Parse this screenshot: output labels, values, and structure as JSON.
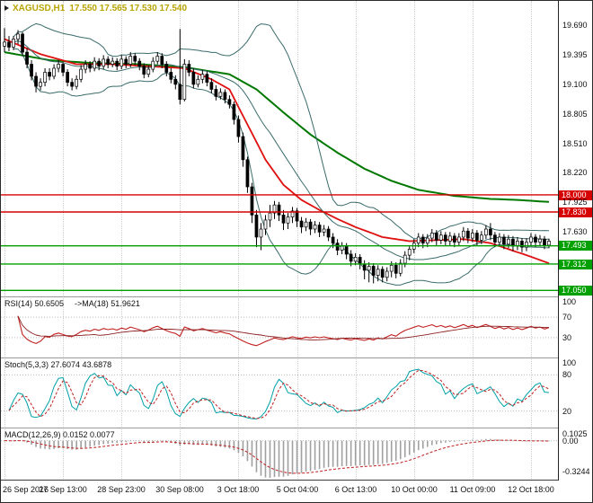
{
  "window": {
    "title_symbol": "XAGUSD,H1",
    "title_ohlc": "17.550 17.565 17.530 17.540"
  },
  "colors": {
    "bull": "#FFFFFF",
    "bear": "#000000",
    "wick": "#000000",
    "title": "#B9A400",
    "grid": "#CFCFCF"
  },
  "chart_data": {
    "type": "candlestick",
    "symbol": "XAGUSD",
    "timeframe": "H1",
    "open": "17.550",
    "high": "17.565",
    "low": "17.530",
    "close": "17.540",
    "price_range": {
      "max": 19.93,
      "min": 16.99
    },
    "y_axis_ticks": [
      "19.690",
      "19.395",
      "19.100",
      "18.805",
      "18.510",
      "18.220",
      "17.925",
      "17.630"
    ],
    "levels": [
      {
        "value": 18.0,
        "label": "18.000",
        "color": "#d60000"
      },
      {
        "value": 17.83,
        "label": "17.830",
        "color": "#d60000"
      },
      {
        "value": 17.493,
        "label": "17.493",
        "color": "#00a000"
      },
      {
        "value": 17.312,
        "label": "17.312",
        "color": "#00a000"
      },
      {
        "value": 17.05,
        "label": "17.050",
        "color": "#00a000"
      }
    ],
    "x_labels": [
      {
        "label": "26 Sep 2016",
        "i": 0
      },
      {
        "label": "27 Sep 13:00",
        "i": 13
      },
      {
        "label": "28 Sep 23:00",
        "i": 26
      },
      {
        "label": "30 Sep 08:00",
        "i": 39
      },
      {
        "label": "3 Oct 18:00",
        "i": 52
      },
      {
        "label": "5 Oct 04:00",
        "i": 65
      },
      {
        "label": "6 Oct 13:00",
        "i": 78
      },
      {
        "label": "10 Oct 00:00",
        "i": 91
      },
      {
        "label": "11 Oct 09:00",
        "i": 104
      },
      {
        "label": "12 Oct 18:00",
        "i": 117
      }
    ],
    "candles": [
      [
        19.48,
        19.66,
        19.42,
        19.52
      ],
      [
        19.52,
        19.58,
        19.43,
        19.47
      ],
      [
        19.47,
        19.58,
        19.44,
        19.55
      ],
      [
        19.55,
        19.64,
        19.5,
        19.6
      ],
      [
        19.6,
        19.62,
        19.38,
        19.42
      ],
      [
        19.42,
        19.46,
        19.26,
        19.3
      ],
      [
        19.3,
        19.34,
        19.14,
        19.18
      ],
      [
        19.18,
        19.22,
        19.02,
        19.08
      ],
      [
        19.08,
        19.16,
        19.04,
        19.12
      ],
      [
        19.12,
        19.26,
        19.08,
        19.22
      ],
      [
        19.22,
        19.26,
        19.14,
        19.18
      ],
      [
        19.18,
        19.3,
        19.15,
        19.26
      ],
      [
        19.26,
        19.34,
        19.22,
        19.3
      ],
      [
        19.3,
        19.32,
        19.18,
        19.22
      ],
      [
        19.22,
        19.25,
        19.08,
        19.12
      ],
      [
        19.12,
        19.16,
        19.04,
        19.08
      ],
      [
        19.08,
        19.19,
        19.05,
        19.15
      ],
      [
        19.15,
        19.29,
        19.12,
        19.25
      ],
      [
        19.25,
        19.34,
        19.21,
        19.3
      ],
      [
        19.3,
        19.33,
        19.22,
        19.26
      ],
      [
        19.26,
        19.37,
        19.23,
        19.33
      ],
      [
        19.33,
        19.36,
        19.24,
        19.28
      ],
      [
        19.28,
        19.39,
        19.25,
        19.35
      ],
      [
        19.35,
        19.38,
        19.26,
        19.3
      ],
      [
        19.3,
        19.37,
        19.27,
        19.33
      ],
      [
        19.33,
        19.36,
        19.24,
        19.28
      ],
      [
        19.28,
        19.39,
        19.25,
        19.35
      ],
      [
        19.35,
        19.38,
        19.26,
        19.3
      ],
      [
        19.3,
        19.42,
        19.27,
        19.38
      ],
      [
        19.38,
        19.41,
        19.29,
        19.33
      ],
      [
        19.33,
        19.36,
        19.24,
        19.28
      ],
      [
        19.28,
        19.31,
        19.16,
        19.2
      ],
      [
        19.2,
        19.29,
        19.17,
        19.25
      ],
      [
        19.25,
        19.37,
        19.22,
        19.33
      ],
      [
        19.33,
        19.42,
        19.3,
        19.38
      ],
      [
        19.38,
        19.41,
        19.26,
        19.3
      ],
      [
        19.3,
        19.33,
        19.18,
        19.22
      ],
      [
        19.22,
        19.26,
        19.11,
        19.15
      ],
      [
        19.15,
        19.19,
        19.05,
        19.1
      ],
      [
        19.1,
        19.65,
        18.9,
        18.95
      ],
      [
        18.95,
        19.35,
        18.93,
        19.3
      ],
      [
        19.3,
        19.34,
        19.18,
        19.22
      ],
      [
        19.22,
        19.26,
        19.06,
        19.1
      ],
      [
        19.1,
        19.19,
        19.07,
        19.15
      ],
      [
        19.15,
        19.24,
        19.11,
        19.2
      ],
      [
        19.2,
        19.23,
        19.08,
        19.12
      ],
      [
        19.12,
        19.16,
        19.01,
        19.05
      ],
      [
        19.05,
        19.09,
        18.94,
        18.98
      ],
      [
        18.98,
        19.06,
        18.95,
        19.02
      ],
      [
        19.02,
        19.05,
        18.91,
        18.95
      ],
      [
        18.95,
        18.99,
        18.86,
        18.9
      ],
      [
        18.9,
        18.93,
        18.7,
        18.75
      ],
      [
        18.75,
        18.79,
        18.52,
        18.58
      ],
      [
        18.58,
        18.62,
        18.28,
        18.35
      ],
      [
        18.35,
        18.38,
        18.02,
        18.08
      ],
      [
        18.08,
        18.12,
        17.72,
        17.8
      ],
      [
        17.8,
        17.85,
        17.48,
        17.58
      ],
      [
        17.58,
        17.72,
        17.45,
        17.66
      ],
      [
        17.66,
        17.8,
        17.6,
        17.75
      ],
      [
        17.75,
        17.9,
        17.68,
        17.82
      ],
      [
        17.82,
        17.94,
        17.76,
        17.9
      ],
      [
        17.9,
        17.93,
        17.74,
        17.8
      ],
      [
        17.8,
        17.85,
        17.65,
        17.72
      ],
      [
        17.72,
        17.82,
        17.66,
        17.78
      ],
      [
        17.78,
        17.88,
        17.72,
        17.84
      ],
      [
        17.84,
        17.87,
        17.68,
        17.74
      ],
      [
        17.74,
        17.78,
        17.62,
        17.68
      ],
      [
        17.68,
        17.77,
        17.64,
        17.73
      ],
      [
        17.73,
        17.76,
        17.6,
        17.66
      ],
      [
        17.66,
        17.74,
        17.62,
        17.7
      ],
      [
        17.7,
        17.73,
        17.58,
        17.63
      ],
      [
        17.63,
        17.7,
        17.59,
        17.66
      ],
      [
        17.66,
        17.69,
        17.54,
        17.58
      ],
      [
        17.58,
        17.62,
        17.47,
        17.52
      ],
      [
        17.52,
        17.56,
        17.4,
        17.45
      ],
      [
        17.45,
        17.53,
        17.41,
        17.49
      ],
      [
        17.49,
        17.52,
        17.36,
        17.41
      ],
      [
        17.41,
        17.45,
        17.29,
        17.34
      ],
      [
        17.34,
        17.42,
        17.3,
        17.38
      ],
      [
        17.38,
        17.41,
        17.26,
        17.31
      ],
      [
        17.31,
        17.35,
        17.16,
        17.25
      ],
      [
        17.25,
        17.33,
        17.13,
        17.29
      ],
      [
        17.29,
        17.32,
        17.12,
        17.2
      ],
      [
        17.2,
        17.3,
        17.14,
        17.26
      ],
      [
        17.26,
        17.29,
        17.13,
        17.18
      ],
      [
        17.18,
        17.28,
        17.14,
        17.24
      ],
      [
        17.24,
        17.34,
        17.18,
        17.3
      ],
      [
        17.3,
        17.33,
        17.17,
        17.22
      ],
      [
        17.22,
        17.36,
        17.19,
        17.32
      ],
      [
        17.32,
        17.44,
        17.28,
        17.4
      ],
      [
        17.4,
        17.5,
        17.35,
        17.46
      ],
      [
        17.46,
        17.56,
        17.42,
        17.52
      ],
      [
        17.52,
        17.62,
        17.48,
        17.58
      ],
      [
        17.58,
        17.61,
        17.47,
        17.52
      ],
      [
        17.52,
        17.61,
        17.48,
        17.57
      ],
      [
        17.57,
        17.66,
        17.53,
        17.62
      ],
      [
        17.62,
        17.65,
        17.5,
        17.55
      ],
      [
        17.55,
        17.64,
        17.51,
        17.6
      ],
      [
        17.6,
        17.63,
        17.49,
        17.54
      ],
      [
        17.54,
        17.63,
        17.5,
        17.59
      ],
      [
        17.59,
        17.62,
        17.48,
        17.53
      ],
      [
        17.53,
        17.62,
        17.49,
        17.58
      ],
      [
        17.58,
        17.68,
        17.54,
        17.64
      ],
      [
        17.64,
        17.67,
        17.52,
        17.57
      ],
      [
        17.57,
        17.66,
        17.53,
        17.62
      ],
      [
        17.62,
        17.65,
        17.5,
        17.55
      ],
      [
        17.55,
        17.64,
        17.51,
        17.6
      ],
      [
        17.6,
        17.7,
        17.56,
        17.66
      ],
      [
        17.66,
        17.72,
        17.55,
        17.6
      ],
      [
        17.6,
        17.63,
        17.48,
        17.53
      ],
      [
        17.53,
        17.62,
        17.49,
        17.58
      ],
      [
        17.58,
        17.61,
        17.46,
        17.51
      ],
      [
        17.51,
        17.6,
        17.47,
        17.56
      ],
      [
        17.56,
        17.59,
        17.44,
        17.49
      ],
      [
        17.49,
        17.58,
        17.45,
        17.54
      ],
      [
        17.54,
        17.57,
        17.43,
        17.48
      ],
      [
        17.48,
        17.57,
        17.44,
        17.53
      ],
      [
        17.53,
        17.62,
        17.49,
        17.58
      ],
      [
        17.58,
        17.61,
        17.48,
        17.53
      ],
      [
        17.53,
        17.6,
        17.49,
        17.56
      ],
      [
        17.56,
        17.59,
        17.46,
        17.5
      ],
      [
        17.5,
        17.565,
        17.47,
        17.54
      ]
    ],
    "overlays": {
      "bollinger": {
        "period": 20,
        "deviation": 1.8,
        "color": "#3a6b6b"
      },
      "ma_red": {
        "color": "#e01010",
        "anchors": [
          [
            0,
            19.55
          ],
          [
            8,
            19.4
          ],
          [
            16,
            19.3
          ],
          [
            24,
            19.3
          ],
          [
            32,
            19.28
          ],
          [
            40,
            19.26
          ],
          [
            46,
            19.15
          ],
          [
            50,
            19.05
          ],
          [
            54,
            18.7
          ],
          [
            58,
            18.35
          ],
          [
            62,
            18.1
          ],
          [
            66,
            17.95
          ],
          [
            70,
            17.85
          ],
          [
            74,
            17.76
          ],
          [
            78,
            17.68
          ],
          [
            84,
            17.58
          ],
          [
            90,
            17.54
          ],
          [
            96,
            17.55
          ],
          [
            102,
            17.56
          ],
          [
            108,
            17.52
          ],
          [
            112,
            17.46
          ],
          [
            116,
            17.4
          ],
          [
            121,
            17.32
          ]
        ]
      },
      "ma_green": {
        "color": "#007800",
        "anchors": [
          [
            0,
            19.42
          ],
          [
            10,
            19.34
          ],
          [
            20,
            19.31
          ],
          [
            30,
            19.3
          ],
          [
            40,
            19.27
          ],
          [
            50,
            19.2
          ],
          [
            56,
            19.05
          ],
          [
            62,
            18.82
          ],
          [
            68,
            18.6
          ],
          [
            74,
            18.42
          ],
          [
            80,
            18.26
          ],
          [
            86,
            18.14
          ],
          [
            92,
            18.05
          ],
          [
            100,
            17.99
          ],
          [
            108,
            17.96
          ],
          [
            114,
            17.95
          ],
          [
            121,
            17.93
          ]
        ]
      }
    },
    "indicators": {
      "rsi": {
        "label": "RSI(14) 50.6505",
        "ma_label": "->MA(18) 51.9621",
        "period": 14,
        "ma_period": 18,
        "scale": [
          {
            "v": 100,
            "label": "100"
          },
          {
            "v": 70,
            "label": "70"
          },
          {
            "v": 30,
            "label": "30"
          }
        ],
        "levels": [
          70,
          30
        ],
        "color": "#c02020",
        "ma_color": "#8b2020"
      },
      "stoch": {
        "label": "Stoch(5,3,3) 27.6074 43.6878",
        "k": 5,
        "d": 3,
        "slowing": 3,
        "scale": [
          {
            "v": 100,
            "label": "100"
          },
          {
            "v": 80,
            "label": "80"
          },
          {
            "v": 20,
            "label": "20"
          }
        ],
        "levels": [
          80,
          20
        ],
        "main_color": "#00a0a8",
        "signal_color": "#c02020"
      },
      "macd": {
        "label": "MACD(12,26,9) 0.0152 0.0077",
        "fast": 12,
        "slow": 26,
        "signal": 9,
        "scale": [
          {
            "v": 0.1025,
            "label": "0.1025"
          },
          {
            "v": 0,
            "label": "0.00"
          },
          {
            "v": -0.3244,
            "label": "-0.3244"
          }
        ],
        "hist_color": "#a0a0a0",
        "signal_color": "#c02020"
      }
    }
  }
}
